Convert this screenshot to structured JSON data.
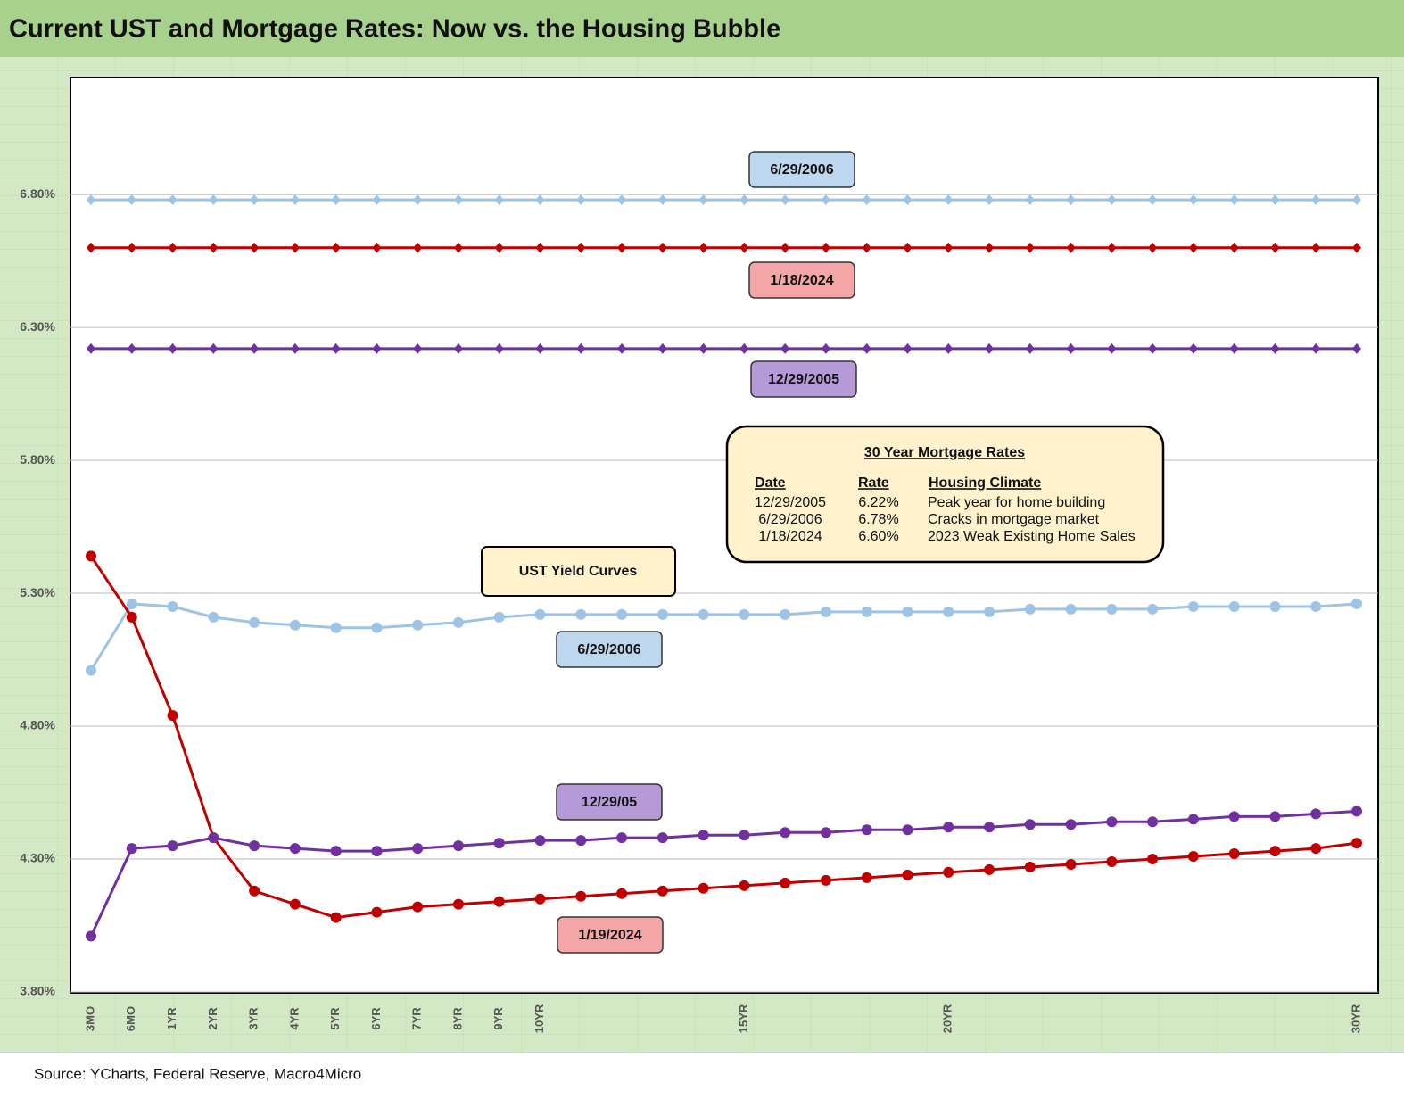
{
  "chart_data": {
    "type": "line",
    "title": "Current UST and Mortgage Rates: Now vs. the Housing Bubble",
    "source": "Source: YCharts, Federal Reserve, Macro4Micro",
    "categories": [
      "3MO",
      "6MO",
      "1YR",
      "2YR",
      "3YR",
      "4YR",
      "5YR",
      "6YR",
      "7YR",
      "8YR",
      "9YR",
      "10YR",
      null,
      null,
      null,
      null,
      "15YR",
      null,
      null,
      null,
      null,
      "20YR",
      null,
      null,
      null,
      null,
      null,
      null,
      null,
      null,
      null,
      "30YR"
    ],
    "ylim": [
      3.8,
      7.24
    ],
    "yticks": [
      {
        "value": 3.8,
        "label": "3.80%"
      },
      {
        "value": 4.3,
        "label": "4.30%"
      },
      {
        "value": 4.8,
        "label": "4.80%"
      },
      {
        "value": 5.3,
        "label": "5.30%"
      },
      {
        "value": 5.8,
        "label": "5.80%"
      },
      {
        "value": 6.3,
        "label": "6.30%"
      },
      {
        "value": 6.8,
        "label": "6.80%"
      }
    ],
    "grid": true,
    "series": [
      {
        "name": "6/29/2006",
        "color": "#9dc3e6",
        "marker": "diamond",
        "label_fill": "#bdd7ee",
        "values": [
          6.78,
          6.78,
          6.78,
          6.78,
          6.78,
          6.78,
          6.78,
          6.78,
          6.78,
          6.78,
          6.78,
          6.78,
          6.78,
          6.78,
          6.78,
          6.78,
          6.78,
          6.78,
          6.78,
          6.78,
          6.78,
          6.78,
          6.78,
          6.78,
          6.78,
          6.78,
          6.78,
          6.78,
          6.78,
          6.78,
          6.78,
          6.78
        ]
      },
      {
        "name": "1/18/2024",
        "color": "#c00000",
        "marker": "diamond",
        "label_fill": "#f4a6a6",
        "values": [
          6.6,
          6.6,
          6.6,
          6.6,
          6.6,
          6.6,
          6.6,
          6.6,
          6.6,
          6.6,
          6.6,
          6.6,
          6.6,
          6.6,
          6.6,
          6.6,
          6.6,
          6.6,
          6.6,
          6.6,
          6.6,
          6.6,
          6.6,
          6.6,
          6.6,
          6.6,
          6.6,
          6.6,
          6.6,
          6.6,
          6.6,
          6.6
        ]
      },
      {
        "name": "12/29/2005",
        "color": "#7030a0",
        "marker": "diamond",
        "label_fill": "#b69ad8",
        "values": [
          6.22,
          6.22,
          6.22,
          6.22,
          6.22,
          6.22,
          6.22,
          6.22,
          6.22,
          6.22,
          6.22,
          6.22,
          6.22,
          6.22,
          6.22,
          6.22,
          6.22,
          6.22,
          6.22,
          6.22,
          6.22,
          6.22,
          6.22,
          6.22,
          6.22,
          6.22,
          6.22,
          6.22,
          6.22,
          6.22,
          6.22,
          6.22
        ]
      },
      {
        "name": "6/29/2006",
        "color": "#9dc3e6",
        "marker": "circle",
        "label_fill": "#bdd7ee",
        "values": [
          5.01,
          5.26,
          5.25,
          5.21,
          5.19,
          5.18,
          5.17,
          5.17,
          5.18,
          5.19,
          5.21,
          5.22,
          5.22,
          5.22,
          5.22,
          5.22,
          5.22,
          5.22,
          5.23,
          5.23,
          5.23,
          5.23,
          5.23,
          5.24,
          5.24,
          5.24,
          5.24,
          5.25,
          5.25,
          5.25,
          5.25,
          5.26
        ]
      },
      {
        "name": "1/19/2024",
        "color": "#c00000",
        "marker": "circle",
        "label_fill": "#f4a6a6",
        "values": [
          5.44,
          5.21,
          4.84,
          4.38,
          4.18,
          4.13,
          4.08,
          4.1,
          4.12,
          4.13,
          4.14,
          4.15,
          4.16,
          4.17,
          4.18,
          4.19,
          4.2,
          4.21,
          4.22,
          4.23,
          4.24,
          4.25,
          4.26,
          4.27,
          4.28,
          4.29,
          4.3,
          4.31,
          4.32,
          4.33,
          4.34,
          4.36
        ]
      },
      {
        "name": "12/29/05",
        "color": "#7030a0",
        "marker": "circle",
        "label_fill": "#b69ad8",
        "values": [
          4.01,
          4.34,
          4.35,
          4.38,
          4.35,
          4.34,
          4.33,
          4.33,
          4.34,
          4.35,
          4.36,
          4.37,
          4.37,
          4.38,
          4.38,
          4.39,
          4.39,
          4.4,
          4.4,
          4.41,
          4.41,
          4.42,
          4.42,
          4.43,
          4.43,
          4.44,
          4.44,
          4.45,
          4.46,
          4.46,
          4.47,
          4.48
        ]
      }
    ],
    "annotation": "UST Yield Curves",
    "note": {
      "title": "30 Year Mortgage Rates",
      "columns": [
        "Date",
        "Rate",
        "Housing Climate"
      ],
      "rows": [
        [
          "12/29/2005",
          "6.22%",
          "Peak year for home building"
        ],
        [
          "6/29/2006",
          "6.78%",
          "Cracks in mortgage market"
        ],
        [
          "1/18/2024",
          "6.60%",
          "2023 Weak Existing Home Sales"
        ]
      ]
    }
  }
}
